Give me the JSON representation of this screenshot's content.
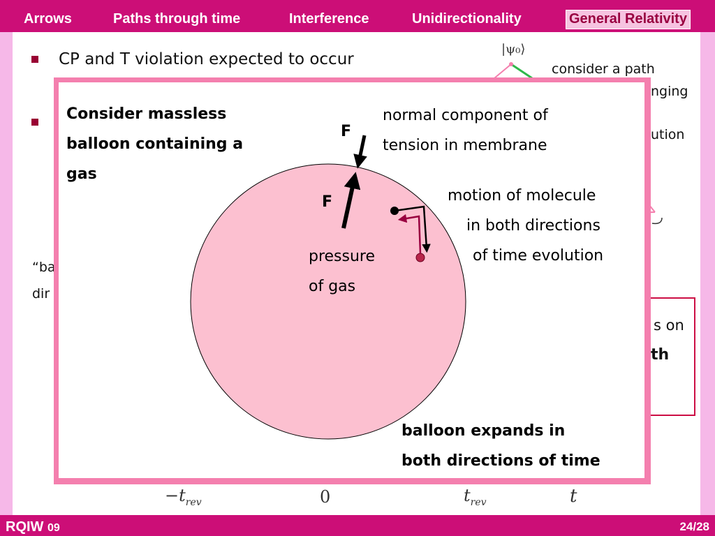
{
  "nav": {
    "tabs": [
      "Arrows",
      "Paths through time",
      "Interference",
      "Unidirectionality",
      "General Relativity"
    ],
    "active_tab": "General Relativity"
  },
  "background_slide": {
    "bullet1": "CP and T violation expected to occur",
    "right_note_1": "consider a path",
    "right_note_2": "nging",
    "right_note_3": "ution",
    "ket_label": "|ψ₀⟩",
    "left_fragment_1": "“ba",
    "left_fragment_2": "dir",
    "box_fragment_1": "s on",
    "box_fragment_2": "th",
    "axis_labels": [
      "−t",
      "0",
      "t",
      "t"
    ],
    "axis_sub": "rev"
  },
  "overlay": {
    "heading_line1": "Consider massless",
    "heading_line2": "balloon containing a",
    "heading_line3": "gas",
    "tension_line1": "normal component of",
    "tension_line2": "tension in membrane",
    "force_label_top": "F",
    "force_label_inner": "F",
    "molecule_line1": "motion of molecule",
    "molecule_line2": "in both directions",
    "molecule_line3": "of time evolution",
    "pressure_line1": "pressure",
    "pressure_line2": "of gas",
    "conclusion_line1": "balloon expands in",
    "conclusion_line2": "both directions of time"
  },
  "footer": {
    "left_main": "RQIW",
    "left_year": "09",
    "page": "24/28"
  },
  "colors": {
    "header": "#cc0e77",
    "overlay_border": "#f47fae",
    "balloon_fill": "#fcc0d0",
    "molecule_arrow": "#990040"
  }
}
